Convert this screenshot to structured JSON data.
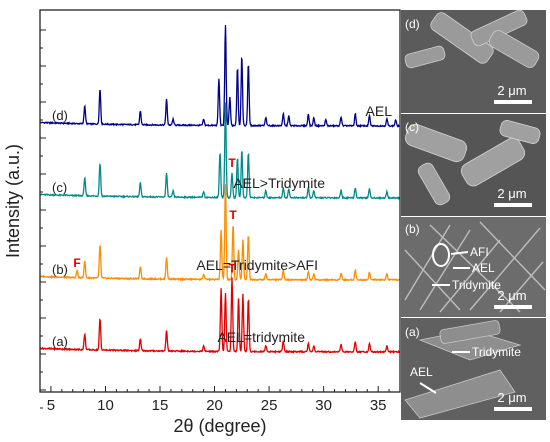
{
  "chart_data": {
    "type": "line",
    "xlabel": "2θ (degree)",
    "ylabel": "Intensity (a.u.)",
    "xlim": [
      4,
      37
    ],
    "x_ticks": [
      5,
      10,
      15,
      20,
      25,
      30,
      35
    ],
    "y_ticks_labeled": false,
    "grid": false,
    "legend": "none",
    "series": [
      {
        "name": "AEL",
        "tag": "(d)",
        "color": "#00008b",
        "offset": 3,
        "peaks": [
          {
            "x": 8.1,
            "h": 0.18
          },
          {
            "x": 9.5,
            "h": 0.35
          },
          {
            "x": 13.2,
            "h": 0.14
          },
          {
            "x": 15.6,
            "h": 0.26
          },
          {
            "x": 16.2,
            "h": 0.06
          },
          {
            "x": 19.0,
            "h": 0.06
          },
          {
            "x": 20.4,
            "h": 0.47
          },
          {
            "x": 21.0,
            "h": 1.0
          },
          {
            "x": 21.4,
            "h": 0.28
          },
          {
            "x": 22.1,
            "h": 0.58
          },
          {
            "x": 22.5,
            "h": 0.7
          },
          {
            "x": 23.1,
            "h": 0.62
          },
          {
            "x": 24.7,
            "h": 0.08
          },
          {
            "x": 26.3,
            "h": 0.12
          },
          {
            "x": 26.8,
            "h": 0.1
          },
          {
            "x": 28.6,
            "h": 0.12
          },
          {
            "x": 29.1,
            "h": 0.08
          },
          {
            "x": 30.2,
            "h": 0.06
          },
          {
            "x": 31.6,
            "h": 0.09
          },
          {
            "x": 32.9,
            "h": 0.12
          },
          {
            "x": 34.2,
            "h": 0.1
          },
          {
            "x": 35.8,
            "h": 0.07
          },
          {
            "x": 36.6,
            "h": 0.06
          }
        ]
      },
      {
        "name": "AEL>Tridymite",
        "tag": "(c)",
        "color": "#008b8b",
        "offset": 2,
        "peaks": [
          {
            "x": 8.1,
            "h": 0.18
          },
          {
            "x": 9.5,
            "h": 0.33
          },
          {
            "x": 13.2,
            "h": 0.14
          },
          {
            "x": 15.6,
            "h": 0.24
          },
          {
            "x": 16.2,
            "h": 0.06
          },
          {
            "x": 19.0,
            "h": 0.06
          },
          {
            "x": 20.5,
            "h": 0.45
          },
          {
            "x": 21.0,
            "h": 0.95
          },
          {
            "x": 21.6,
            "h": 0.25
          },
          {
            "x": 22.1,
            "h": 0.4
          },
          {
            "x": 22.5,
            "h": 0.48
          },
          {
            "x": 23.1,
            "h": 0.45
          },
          {
            "x": 24.7,
            "h": 0.07
          },
          {
            "x": 26.3,
            "h": 0.1
          },
          {
            "x": 26.8,
            "h": 0.09
          },
          {
            "x": 28.6,
            "h": 0.1
          },
          {
            "x": 29.1,
            "h": 0.07
          },
          {
            "x": 31.6,
            "h": 0.08
          },
          {
            "x": 32.9,
            "h": 0.1
          },
          {
            "x": 34.2,
            "h": 0.09
          },
          {
            "x": 35.8,
            "h": 0.06
          }
        ]
      },
      {
        "name": "AEL=Tridymite>AFI",
        "tag": "(b)",
        "color": "#ff8c00",
        "offset": 1,
        "peaks": [
          {
            "x": 7.4,
            "h": 0.07
          },
          {
            "x": 8.1,
            "h": 0.17
          },
          {
            "x": 9.5,
            "h": 0.33
          },
          {
            "x": 13.2,
            "h": 0.12
          },
          {
            "x": 15.6,
            "h": 0.22
          },
          {
            "x": 19.0,
            "h": 0.05
          },
          {
            "x": 20.6,
            "h": 0.5
          },
          {
            "x": 21.0,
            "h": 0.95
          },
          {
            "x": 21.7,
            "h": 0.55
          },
          {
            "x": 22.2,
            "h": 0.3
          },
          {
            "x": 22.6,
            "h": 0.4
          },
          {
            "x": 23.1,
            "h": 0.45
          },
          {
            "x": 24.7,
            "h": 0.06
          },
          {
            "x": 26.3,
            "h": 0.1
          },
          {
            "x": 28.6,
            "h": 0.08
          },
          {
            "x": 29.1,
            "h": 0.06
          },
          {
            "x": 31.6,
            "h": 0.07
          },
          {
            "x": 32.9,
            "h": 0.1
          },
          {
            "x": 34.2,
            "h": 0.08
          },
          {
            "x": 35.8,
            "h": 0.06
          }
        ]
      },
      {
        "name": "AEL=tridymite",
        "tag": "(a)",
        "color": "#e00000",
        "offset": 0,
        "peaks": [
          {
            "x": 8.1,
            "h": 0.15
          },
          {
            "x": 9.5,
            "h": 0.3
          },
          {
            "x": 13.2,
            "h": 0.11
          },
          {
            "x": 15.6,
            "h": 0.2
          },
          {
            "x": 19.0,
            "h": 0.05
          },
          {
            "x": 20.6,
            "h": 0.6
          },
          {
            "x": 21.0,
            "h": 0.55
          },
          {
            "x": 21.6,
            "h": 0.7
          },
          {
            "x": 22.2,
            "h": 0.5
          },
          {
            "x": 22.6,
            "h": 0.55
          },
          {
            "x": 23.1,
            "h": 0.5
          },
          {
            "x": 24.7,
            "h": 0.06
          },
          {
            "x": 26.3,
            "h": 0.1
          },
          {
            "x": 28.6,
            "h": 0.08
          },
          {
            "x": 29.1,
            "h": 0.06
          },
          {
            "x": 31.6,
            "h": 0.07
          },
          {
            "x": 32.9,
            "h": 0.1
          },
          {
            "x": 34.2,
            "h": 0.08
          },
          {
            "x": 35.8,
            "h": 0.06
          }
        ]
      }
    ],
    "annotations": [
      {
        "text": "T",
        "series": "AEL>Tridymite",
        "x": 21.6,
        "color": "#e00000"
      },
      {
        "text": "T",
        "series": "AEL=Tridymite>AFI",
        "x": 21.7,
        "color": "#e00000"
      },
      {
        "text": "F",
        "series": "AEL=Tridymite>AFI",
        "x": 7.4,
        "color": "#e00000"
      },
      {
        "text": "T",
        "series": "AEL=tridymite",
        "x": 21.6,
        "color": "#e00000"
      }
    ]
  },
  "sem_panels": [
    {
      "tag": "(d)",
      "scale": "2 μm",
      "labels": []
    },
    {
      "tag": "(c)",
      "scale": "2 μm",
      "labels": []
    },
    {
      "tag": "(b)",
      "scale": "2 μm",
      "labels": [
        "AFI",
        "AEL",
        "Tridymite"
      ]
    },
    {
      "tag": "(a)",
      "scale": "2 μm",
      "labels": [
        "Tridymite",
        "AEL"
      ]
    }
  ]
}
